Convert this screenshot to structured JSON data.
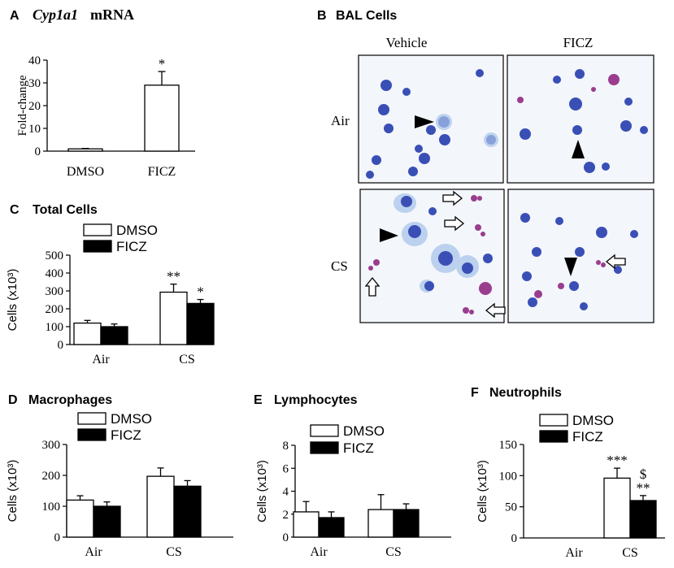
{
  "panels": {
    "A": {
      "letter": "A",
      "title_italic": "Cyp1a1",
      "title_rest": " mRNA"
    },
    "B": {
      "letter": "B",
      "title": "BAL Cells",
      "col_vehicle": "Vehicle",
      "col_ficz": "FICZ",
      "row_air": "Air",
      "row_cs": "CS"
    },
    "C": {
      "letter": "C",
      "title": "Total Cells"
    },
    "D": {
      "letter": "D",
      "title": "Macrophages"
    },
    "E": {
      "letter": "E",
      "title": "Lymphocytes"
    },
    "F": {
      "letter": "F",
      "title": "Neutrophils"
    }
  },
  "legend": {
    "dmso": "DMSO",
    "ficz": "FICZ"
  },
  "colors": {
    "dmso_fill": "#ffffff",
    "ficz_fill": "#000000",
    "stroke": "#000000",
    "cell_blue": "#3a4fb5",
    "cell_purple": "#9a3d8f"
  },
  "chart_data": [
    {
      "id": "A",
      "type": "bar",
      "title": "Cyp1a1 mRNA",
      "ylabel": "Fold-change",
      "categories": [
        "DMSO",
        "FICZ"
      ],
      "values": [
        1,
        29
      ],
      "errors": [
        0.2,
        6
      ],
      "significance": [
        "",
        "*"
      ],
      "yticks": [
        0,
        10,
        20,
        30,
        40
      ],
      "ylim": [
        0,
        40
      ]
    },
    {
      "id": "C",
      "type": "bar",
      "title": "Total Cells",
      "ylabel": "Cells (x10³)",
      "categories": [
        "Air",
        "CS"
      ],
      "series": [
        {
          "name": "DMSO",
          "values": [
            120,
            293
          ],
          "errors": [
            15,
            45
          ],
          "significance": [
            "",
            "**"
          ]
        },
        {
          "name": "FICZ",
          "values": [
            100,
            230
          ],
          "errors": [
            15,
            22
          ],
          "significance": [
            "",
            "*"
          ]
        }
      ],
      "yticks": [
        0,
        100,
        200,
        300,
        400,
        500
      ],
      "ylim": [
        0,
        500
      ]
    },
    {
      "id": "D",
      "type": "bar",
      "title": "Macrophages",
      "ylabel": "Cells (x10³)",
      "categories": [
        "Air",
        "CS"
      ],
      "series": [
        {
          "name": "DMSO",
          "values": [
            120,
            197
          ],
          "errors": [
            14,
            27
          ],
          "significance": [
            "",
            ""
          ]
        },
        {
          "name": "FICZ",
          "values": [
            100,
            165
          ],
          "errors": [
            14,
            18
          ],
          "significance": [
            "",
            ""
          ]
        }
      ],
      "yticks": [
        0,
        100,
        200,
        300
      ],
      "ylim": [
        0,
        300
      ]
    },
    {
      "id": "E",
      "type": "bar",
      "title": "Lymphocytes",
      "ylabel": "Cells (x10³)",
      "categories": [
        "Air",
        "CS"
      ],
      "series": [
        {
          "name": "DMSO",
          "values": [
            2.2,
            2.4
          ],
          "errors": [
            0.9,
            1.3
          ],
          "significance": [
            "",
            ""
          ]
        },
        {
          "name": "FICZ",
          "values": [
            1.7,
            2.4
          ],
          "errors": [
            0.5,
            0.5
          ],
          "significance": [
            "",
            ""
          ]
        }
      ],
      "yticks": [
        0,
        2,
        4,
        6,
        8
      ],
      "ylim": [
        0,
        8
      ]
    },
    {
      "id": "F",
      "type": "bar",
      "title": "Neutrophils",
      "ylabel": "Cells (x10³)",
      "categories": [
        "Air",
        "CS"
      ],
      "series": [
        {
          "name": "DMSO",
          "values": [
            0,
            96
          ],
          "errors": [
            0,
            16
          ],
          "significance": [
            "",
            "***"
          ]
        },
        {
          "name": "FICZ",
          "values": [
            0,
            60
          ],
          "errors": [
            0,
            8
          ],
          "significance": [
            "",
            "$\n**"
          ]
        }
      ],
      "yticks": [
        0,
        50,
        100,
        150
      ],
      "ylim": [
        0,
        150
      ]
    }
  ]
}
